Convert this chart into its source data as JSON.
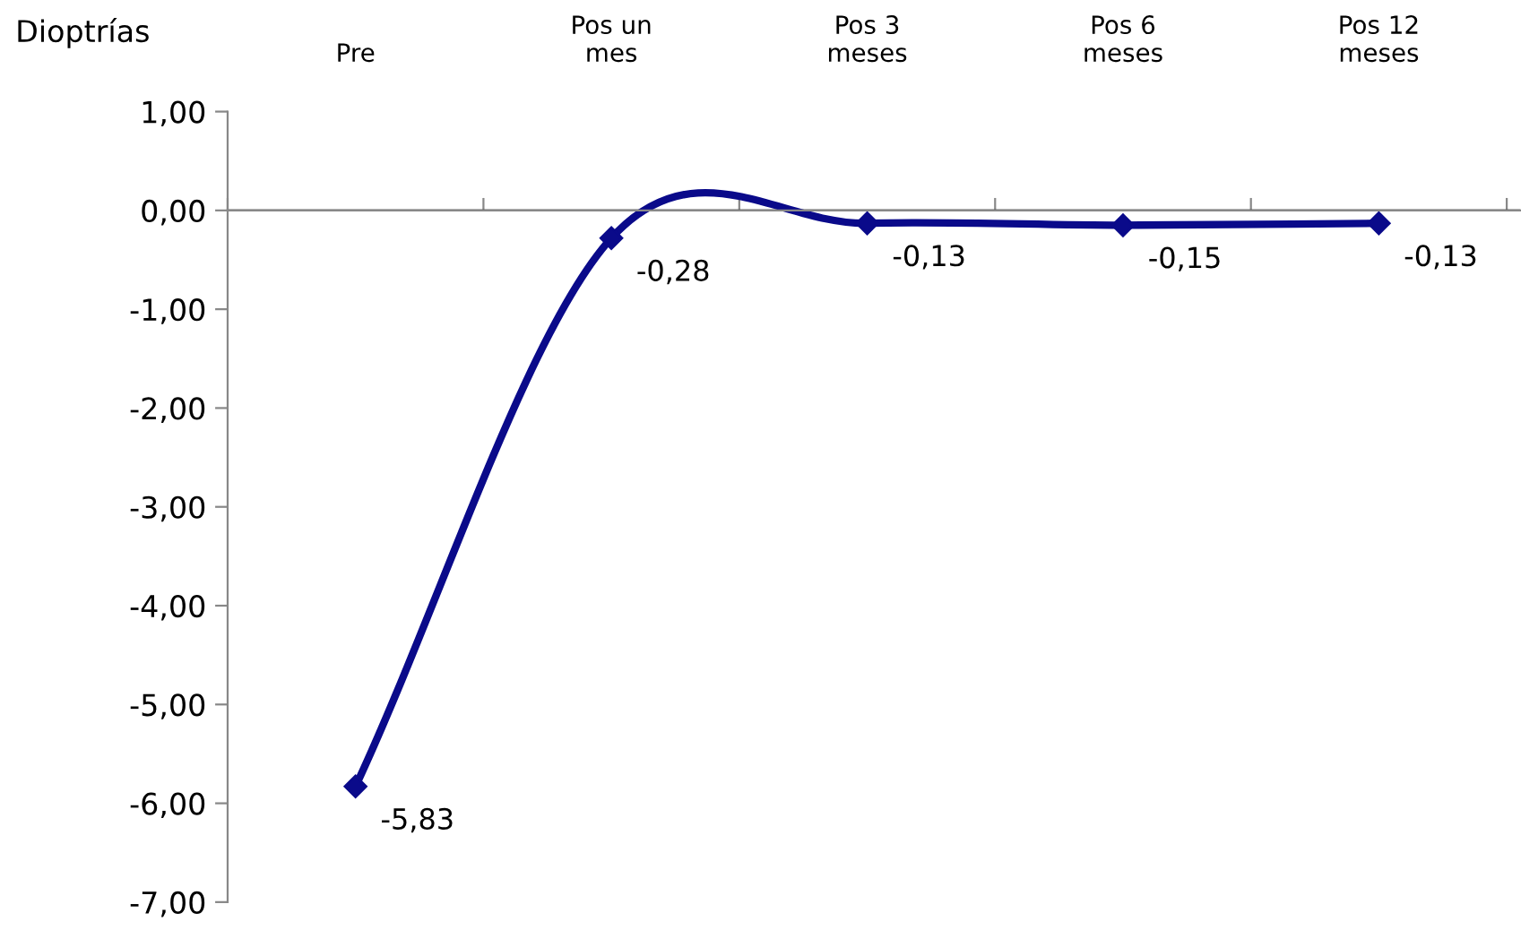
{
  "chart_data": {
    "type": "line",
    "ylabel": "Dioptrías",
    "categories": [
      "Pre",
      "Pos un\nmes",
      "Pos 3\nmeses",
      "Pos 6\nmeses",
      "Pos 12\nmeses"
    ],
    "series": [
      {
        "color": "#0a0a8a",
        "values": [
          -5.83,
          -0.28,
          -0.13,
          -0.15,
          -0.13
        ],
        "value_labels": [
          "-5,83",
          "-0,28",
          "-0,13",
          "-0,15",
          "-0,13"
        ]
      }
    ],
    "ylim": [
      -7,
      1
    ],
    "yticks": [
      {
        "value": 1,
        "label": "1,00"
      },
      {
        "value": 0,
        "label": "0,00"
      },
      {
        "value": -1,
        "label": "-1,00"
      },
      {
        "value": -2,
        "label": "-2,00"
      },
      {
        "value": -3,
        "label": "-3,00"
      },
      {
        "value": -4,
        "label": "-4,00"
      },
      {
        "value": -5,
        "label": "-5,00"
      },
      {
        "value": -6,
        "label": "-6,00"
      },
      {
        "value": -7,
        "label": "-7,00"
      }
    ],
    "marker": "diamond",
    "line_style": "solid",
    "grid": false,
    "legend": false
  }
}
